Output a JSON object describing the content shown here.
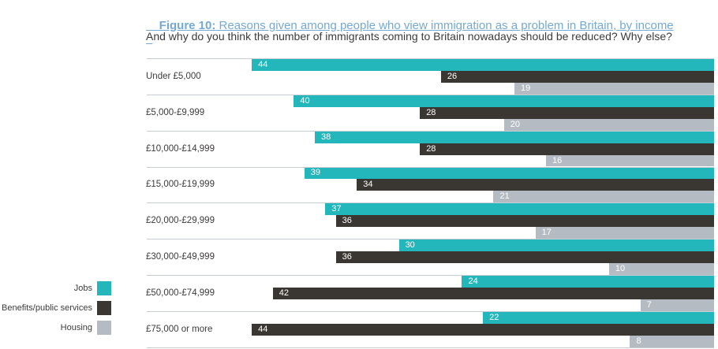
{
  "header": {
    "figure_label": "Figure 10:",
    "title_rest": " Reasons given among people who view immigration as a problem in Britain, by income",
    "subtitle": "And why do you think the number of immigrants coming to Britain nowadays should be reduced? Why else?"
  },
  "colors": {
    "jobs": "#23b6ba",
    "benefits": "#3a3733",
    "housing": "#b4bbc3",
    "separator": "#c6cdd2",
    "title_link": "#74a9d6",
    "text": "#3d3b3a",
    "bar_value_text": "#ffffff"
  },
  "legend": {
    "items": [
      {
        "label": "Jobs",
        "series_key": "jobs"
      },
      {
        "label": "Benefits/public services",
        "series_key": "benefits"
      },
      {
        "label": "Housing",
        "series_key": "housing"
      }
    ]
  },
  "chart_data": {
    "type": "bar",
    "orientation": "horizontal",
    "bar_alignment": "right-anchored",
    "title": "Figure 10: Reasons given among people who view immigration as a problem in Britain, by income",
    "subtitle": "And why do you think the number of immigrants coming to Britain nowadays should be reduced? Why else?",
    "value_unit": "percent",
    "xlim": [
      0,
      54
    ],
    "grid": false,
    "legend_position": "bottom-left",
    "categories": [
      "Under £5,000",
      "£5,000-£9,999",
      "£10,000-£14,999",
      "£15,000-£19,999",
      "£20,000-£29,999",
      "£30,000-£49,999",
      "£50,000-£74,999",
      "£75,000 or more"
    ],
    "series": [
      {
        "name": "Jobs",
        "color_key": "jobs",
        "values": [
          44,
          40,
          38,
          39,
          37,
          30,
          24,
          22
        ]
      },
      {
        "name": "Benefits/public services",
        "color_key": "benefits",
        "values": [
          26,
          28,
          28,
          34,
          36,
          36,
          42,
          44
        ]
      },
      {
        "name": "Housing",
        "color_key": "housing",
        "values": [
          19,
          20,
          16,
          21,
          17,
          10,
          7,
          8
        ]
      }
    ]
  }
}
